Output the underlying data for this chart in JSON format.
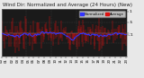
{
  "title": "Wind Dir: Normalized and Average (24 Hours) (New)",
  "bg_color": "#e8e8e8",
  "plot_bg": "#1a1a1a",
  "bar_color": "#dd1111",
  "avg_color": "#3333ff",
  "ylim": [
    -1.1,
    1.1
  ],
  "n_points": 250,
  "grid_color": "#444444",
  "title_fontsize": 4.0,
  "tick_fontsize": 3.2,
  "legend_items": [
    "Normalized",
    "Average"
  ],
  "legend_colors": [
    "#3333ff",
    "#dd1111"
  ],
  "ytick_vals": [
    1.0,
    0.5,
    0.0,
    -0.1
  ],
  "ytick_labels": [
    "1",
    ".5",
    ".",
    "-.1"
  ]
}
